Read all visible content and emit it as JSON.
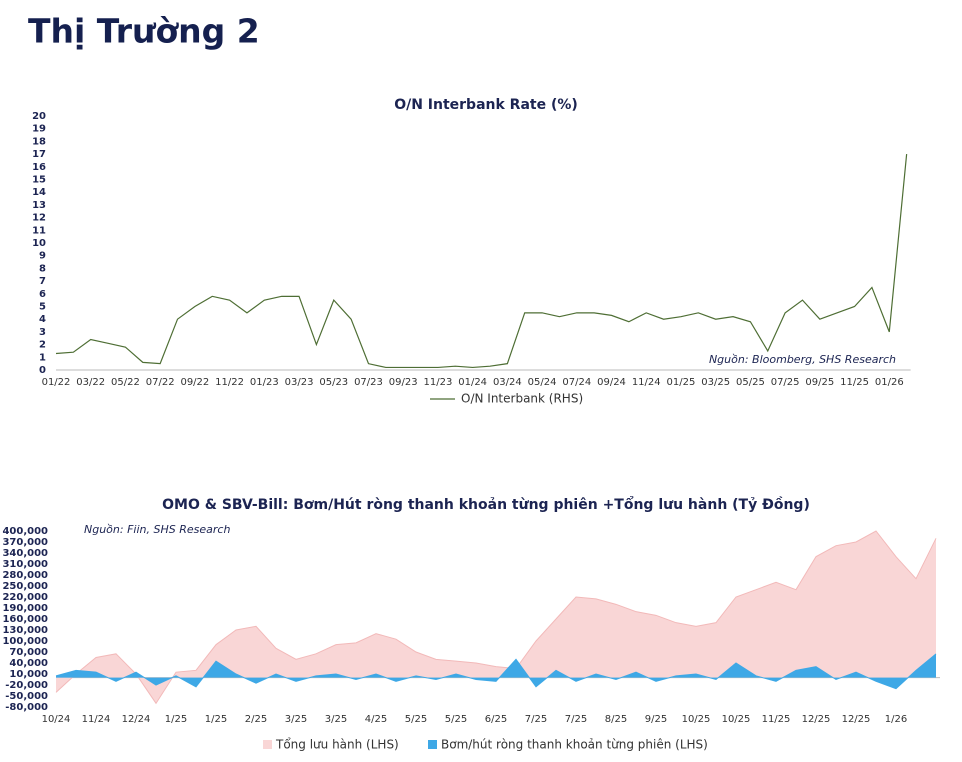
{
  "title": "Thị Trường 2",
  "chart_data": [
    {
      "type": "line",
      "title": "O/N Interbank Rate (%)",
      "annotation": "Nguồn:  Bloomberg, SHS Research",
      "categories": [
        "01/22",
        null,
        "03/22",
        null,
        "05/22",
        null,
        "07/22",
        null,
        "09/22",
        null,
        "11/22",
        null,
        "01/23",
        null,
        "03/23",
        null,
        "05/23",
        null,
        "07/23",
        null,
        "09/23",
        null,
        "11/23",
        null,
        "01/24",
        null,
        "03/24",
        null,
        "05/24",
        null,
        "07/24",
        null,
        "09/24",
        null,
        "11/24",
        null,
        "01/25",
        null,
        "03/25",
        null,
        "05/25",
        null,
        "07/25",
        null,
        "09/25",
        null,
        "11/25",
        null,
        "01/26",
        null
      ],
      "series": [
        {
          "name": "O/N Interbank (RHS)",
          "color": "#4e6e34",
          "values": [
            1.3,
            1.4,
            2.4,
            2.1,
            1.8,
            0.6,
            0.5,
            4.0,
            5.0,
            5.8,
            5.5,
            4.5,
            5.5,
            5.8,
            5.8,
            2.0,
            5.5,
            4.0,
            0.5,
            0.2,
            0.2,
            0.2,
            0.2,
            0.3,
            0.2,
            0.3,
            0.5,
            4.5,
            4.5,
            4.2,
            4.5,
            4.5,
            4.3,
            3.8,
            4.5,
            4.0,
            4.2,
            4.5,
            4.0,
            4.2,
            3.8,
            1.5,
            4.5,
            5.5,
            4.0,
            4.5,
            5.0,
            6.5,
            3.0,
            17.0
          ]
        }
      ],
      "ylim": [
        0,
        20
      ],
      "yticks": [
        0,
        1,
        2,
        3,
        4,
        5,
        6,
        7,
        8,
        9,
        10,
        11,
        12,
        13,
        14,
        15,
        16,
        17,
        18,
        19,
        20
      ]
    },
    {
      "type": "area",
      "title": "OMO & SBV-Bill: Bơm/Hút ròng thanh khoản từng phiên +Tổng lưu hành (Tỷ Đồng)",
      "annotation": "Nguồn:  Fiin, SHS Research",
      "categories": [
        "10/24",
        null,
        "11/24",
        null,
        "12/24",
        null,
        "1/25",
        null,
        "1/25",
        null,
        "2/25",
        null,
        "3/25",
        null,
        "3/25",
        null,
        "4/25",
        null,
        "5/25",
        null,
        "5/25",
        null,
        "6/25",
        null,
        "7/25",
        null,
        "7/25",
        null,
        "8/25",
        null,
        "9/25",
        null,
        "10/25",
        null,
        "10/25",
        null,
        "11/25",
        null,
        "12/25",
        null,
        "12/25",
        null,
        "1/26",
        null,
        null
      ],
      "series": [
        {
          "name": "Tổng lưu hành (LHS)",
          "color": "#f9d6d6",
          "values": [
            -40000,
            10000,
            55000,
            65000,
            10000,
            -70000,
            15000,
            20000,
            90000,
            130000,
            140000,
            80000,
            50000,
            65000,
            90000,
            95000,
            120000,
            105000,
            70000,
            50000,
            45000,
            40000,
            30000,
            25000,
            100000,
            160000,
            220000,
            215000,
            200000,
            180000,
            170000,
            150000,
            140000,
            150000,
            220000,
            240000,
            260000,
            240000,
            330000,
            360000,
            370000,
            400000,
            330000,
            270000,
            380000
          ]
        },
        {
          "name": "Bơm/hút ròng thanh khoản từng phiên (LHS)",
          "color": "#3ea8e6",
          "values": [
            5000,
            20000,
            15000,
            -10000,
            15000,
            -20000,
            5000,
            -25000,
            45000,
            10000,
            -15000,
            10000,
            -10000,
            5000,
            10000,
            -5000,
            10000,
            -10000,
            5000,
            -5000,
            10000,
            -5000,
            -10000,
            50000,
            -25000,
            20000,
            -10000,
            10000,
            -5000,
            15000,
            -10000,
            5000,
            10000,
            -5000,
            40000,
            5000,
            -10000,
            20000,
            30000,
            -5000,
            15000,
            -10000,
            -30000,
            20000,
            65000
          ]
        }
      ],
      "ylim": [
        -80000,
        400000
      ],
      "yticks": [
        {
          "value": -80000,
          "label": "-80,000"
        },
        {
          "value": -50000,
          "label": "-50,000"
        },
        {
          "value": -20000,
          "label": "-20,000"
        },
        {
          "value": 10000,
          "label": "10,000"
        },
        {
          "value": 40000,
          "label": "40,000"
        },
        {
          "value": 70000,
          "label": "70,000"
        },
        {
          "value": 100000,
          "label": "100,000"
        },
        {
          "value": 130000,
          "label": "130,000"
        },
        {
          "value": 160000,
          "label": "160,000"
        },
        {
          "value": 190000,
          "label": "190,000"
        },
        {
          "value": 220000,
          "label": "220,000"
        },
        {
          "value": 250000,
          "label": "250,000"
        },
        {
          "value": 280000,
          "label": "280,000"
        },
        {
          "value": 310000,
          "label": "310,000"
        },
        {
          "value": 340000,
          "label": "340,000"
        },
        {
          "value": 370000,
          "label": "370,000"
        },
        {
          "value": 400000,
          "label": "400,000"
        }
      ]
    }
  ]
}
